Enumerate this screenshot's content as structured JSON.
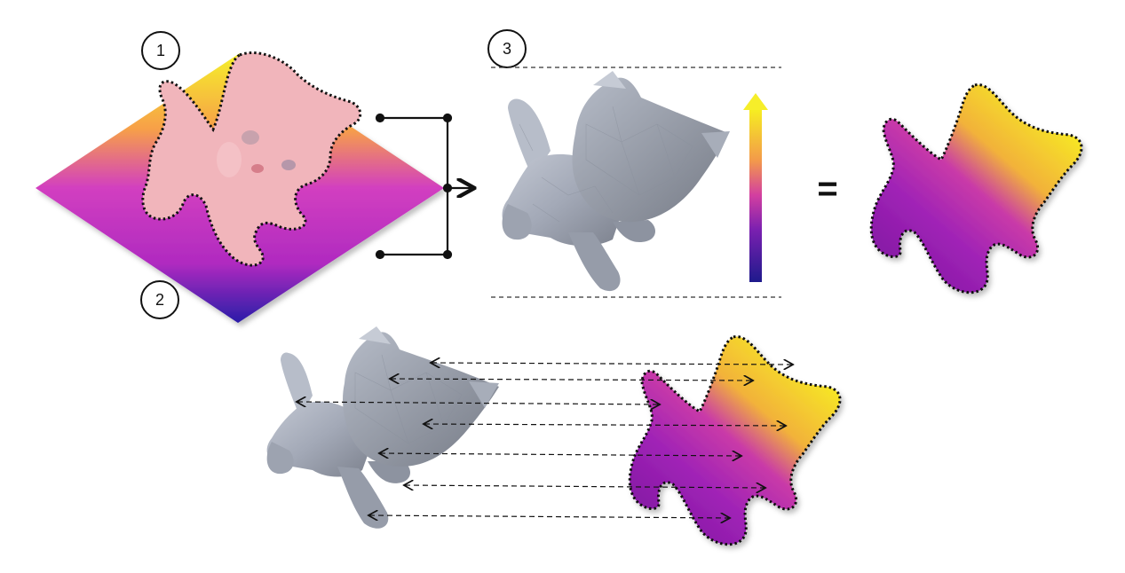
{
  "steps": [
    {
      "id": "step-1",
      "label": "1"
    },
    {
      "id": "step-2",
      "label": "2"
    },
    {
      "id": "step-3",
      "label": "3"
    }
  ],
  "equals_symbol": "=",
  "colors": {
    "gradient_top": "#f5f02a",
    "gradient_upper": "#f7a048",
    "gradient_mid": "#cf3bc0",
    "gradient_lower": "#b62ab8",
    "gradient_bottom": "#2a1da8",
    "mesh_gray": "#a9afbd",
    "kitten_pink": "#f0b2b8",
    "outline": "#111111"
  },
  "icons": [
    "kitten-photo",
    "kitten-mesh",
    "color-scale-arrow",
    "bracket-arrow",
    "correspondence-arrows"
  ]
}
